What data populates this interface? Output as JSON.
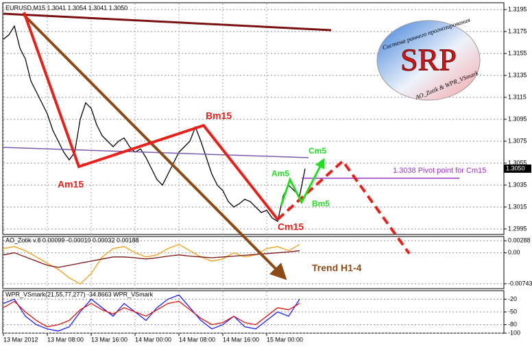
{
  "chart_data": [
    {
      "type": "line",
      "title": "EURUSD,M15 1.3041 1.3054 1.3041 1.3050",
      "x": [
        0,
        1,
        2,
        3,
        4,
        5,
        6,
        7,
        8,
        9,
        10,
        11,
        12,
        13,
        14,
        15,
        16,
        17,
        18,
        19,
        20,
        21,
        22,
        23,
        24,
        25,
        26,
        27,
        28,
        29,
        30,
        31,
        32,
        33,
        34,
        35,
        36,
        37,
        38,
        39,
        40,
        41,
        42,
        43,
        44,
        45,
        46,
        47,
        48,
        49,
        50,
        51,
        52,
        53,
        54,
        55
      ],
      "series": [
        {
          "color": "#000000",
          "values": [
            1.3168,
            1.3172,
            1.318,
            1.316,
            1.315,
            1.313,
            1.312,
            1.311,
            1.31,
            1.3085,
            1.3075,
            1.3065,
            1.3058,
            1.3065,
            1.3095,
            1.311,
            1.3105,
            1.309,
            1.308,
            1.3075,
            1.307,
            1.3075,
            1.3078,
            1.307,
            1.3065,
            1.3068,
            1.306,
            1.305,
            1.304,
            1.3035,
            1.3045,
            1.3055,
            1.3065,
            1.307,
            1.3075,
            1.3088,
            1.3075,
            1.306,
            1.3045,
            1.3035,
            1.303,
            1.302,
            1.3015,
            1.3018,
            1.3022,
            1.302,
            1.3015,
            1.301,
            1.3012,
            1.3005,
            1.3002,
            1.3025,
            1.3035,
            1.303,
            1.3025,
            1.305
          ]
        }
      ],
      "xlim": [
        0,
        91.25
      ],
      "xticks": [
        {
          "value": 0,
          "label": "13 Mar 2012"
        },
        {
          "value": 8,
          "label": "13 Mar 08:00"
        },
        {
          "value": 16,
          "label": "13 Mar 16:00"
        },
        {
          "value": 24,
          "label": "14 Mar 00:00"
        },
        {
          "value": 32,
          "label": "14 Mar 08:00"
        },
        {
          "value": 40,
          "label": "14 Mar 16:00"
        },
        {
          "value": 48,
          "label": "15 Mar 00:00"
        }
      ],
      "ylim": [
        1.299,
        1.32
      ],
      "yticks": [
        1.3195,
        1.3175,
        1.3155,
        1.3135,
        1.3115,
        1.3095,
        1.3075,
        1.3055,
        1.3035,
        1.3015,
        1.2995
      ],
      "grid": true,
      "price_label": {
        "value": 1.305,
        "label": "1.3050"
      },
      "annotations": [
        {
          "text": "Am15",
          "color": "#e8201a"
        },
        {
          "text": "Bm15",
          "color": "#e8201a"
        },
        {
          "text": "Cm15",
          "color": "#e8201a"
        },
        {
          "text": "Am5",
          "color": "#22dd22"
        },
        {
          "text": "Bm5",
          "color": "#22dd22"
        },
        {
          "text": "Cm5",
          "color": "#22dd22"
        },
        {
          "text": "Trend H1-4",
          "color": "#8b4a16"
        },
        {
          "text": "1.3038 Pivot point for Cm15",
          "color": "#9a33cc"
        }
      ],
      "logo": {
        "title": "SRP",
        "subtitle": "Система раннего прогнозирования",
        "credit": "AO_Zotik & WPR_VSmark"
      }
    },
    {
      "type": "line",
      "title": "AO_Zotik v.8 0.00099 -0.00010 0.00032 0.00188",
      "x": [
        0,
        2,
        4,
        6,
        8,
        10,
        12,
        14,
        16,
        18,
        20,
        22,
        24,
        26,
        28,
        30,
        32,
        34,
        36,
        38,
        40,
        42,
        44,
        46,
        48,
        50,
        52,
        54
      ],
      "series": [
        {
          "color": "#f39c12",
          "values": [
            0.001,
            0.0015,
            0.0005,
            -0.001,
            -0.0025,
            -0.004,
            -0.006,
            -0.0075,
            -0.005,
            -0.001,
            0.001,
            0.0015,
            0.0,
            -0.001,
            -0.0005,
            0.001,
            0.002,
            0.0005,
            -0.001,
            -0.002,
            -0.0015,
            0.0,
            -0.001,
            -0.0005,
            0.001,
            0.0015,
            0.0005,
            0.002
          ]
        },
        {
          "color": "#7a1010",
          "values": [
            -0.0005,
            0.0,
            -0.001,
            -0.002,
            -0.003,
            -0.0035,
            -0.003,
            -0.0025,
            -0.002,
            -0.0015,
            -0.001,
            -0.001,
            -0.0012,
            -0.0015,
            -0.0012,
            -0.0008,
            -0.0005,
            -0.0008,
            -0.001,
            -0.0012,
            -0.001,
            -0.0008,
            -0.0006,
            -0.0004,
            -0.0002,
            0.0,
            0.0002,
            0.0005
          ]
        }
      ],
      "xlim": [
        0,
        91.25
      ],
      "ylim": [
        -0.0086,
        0.0039
      ],
      "yticks": [
        0.00288,
        {
          "value": 0,
          "label": "0.00"
        },
        -0.00743
      ],
      "grid": true
    },
    {
      "type": "line",
      "title": "WPR_VSmark(21,55,77,277) -34.8663 WPR_VSmark",
      "x": [
        0,
        2,
        4,
        6,
        8,
        10,
        12,
        14,
        16,
        18,
        20,
        22,
        24,
        26,
        28,
        30,
        32,
        34,
        36,
        38,
        40,
        42,
        44,
        46,
        48,
        50,
        52,
        54
      ],
      "series": [
        {
          "color": "#1a1aff",
          "values": [
            -30,
            -20,
            -60,
            -80,
            -90,
            -95,
            -85,
            -50,
            -20,
            -40,
            -60,
            -30,
            -50,
            -70,
            -40,
            -20,
            -10,
            -40,
            -70,
            -90,
            -80,
            -60,
            -85,
            -90,
            -70,
            -50,
            -60,
            -20
          ]
        },
        {
          "color": "#e01010",
          "values": [
            -40,
            -25,
            -50,
            -70,
            -85,
            -80,
            -70,
            -45,
            -30,
            -45,
            -55,
            -40,
            -50,
            -60,
            -45,
            -30,
            -25,
            -45,
            -65,
            -80,
            -75,
            -60,
            -75,
            -80,
            -60,
            -40,
            -45,
            -30
          ]
        }
      ],
      "xlim": [
        0,
        91.25
      ],
      "ylim": [
        -100,
        0
      ],
      "yticks": [
        -20,
        -50,
        -80,
        -100
      ],
      "grid": true
    }
  ]
}
